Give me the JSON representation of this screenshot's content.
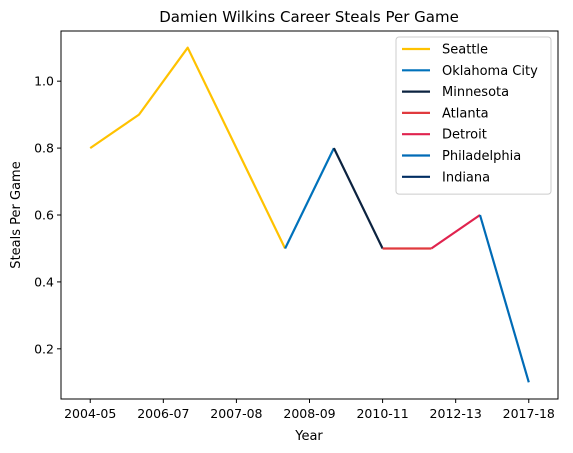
{
  "chart_data": {
    "type": "line",
    "title": "Damien Wilkins Career Steals Per Game",
    "xlabel": "Year",
    "ylabel": "Steals Per Game",
    "x_tick_labels": [
      "2004-05",
      "2006-07",
      "2007-08",
      "2008-09",
      "2010-11",
      "2012-13",
      "2017-18"
    ],
    "xlim": [
      -0.6,
      9.6
    ],
    "ylim": [
      0.05,
      1.15
    ],
    "y_ticks": [
      0.2,
      0.4,
      0.6,
      0.8,
      1.0
    ],
    "grid": false,
    "legend_position": "top-right",
    "series": [
      {
        "name": "Seattle",
        "color": "#FFC200",
        "x": [
          0,
          1,
          2,
          3,
          4
        ],
        "y": [
          0.8,
          0.9,
          1.1,
          0.8,
          0.5
        ]
      },
      {
        "name": "Oklahoma City",
        "color": "#0072BB",
        "x": [
          4,
          5
        ],
        "y": [
          0.5,
          0.8
        ]
      },
      {
        "name": "Minnesota",
        "color": "#0C2340",
        "x": [
          5,
          6
        ],
        "y": [
          0.8,
          0.5
        ]
      },
      {
        "name": "Atlanta",
        "color": "#E03A3E",
        "x": [
          6,
          7
        ],
        "y": [
          0.5,
          0.5
        ]
      },
      {
        "name": "Detroit",
        "color": "#E0234E",
        "x": [
          7,
          8
        ],
        "y": [
          0.5,
          0.6
        ]
      },
      {
        "name": "Philadelphia",
        "color": "#006BB6",
        "x": [
          8,
          9
        ],
        "y": [
          0.6,
          0.1
        ]
      },
      {
        "name": "Indiana",
        "color": "#002D62",
        "x": [],
        "y": []
      }
    ]
  }
}
